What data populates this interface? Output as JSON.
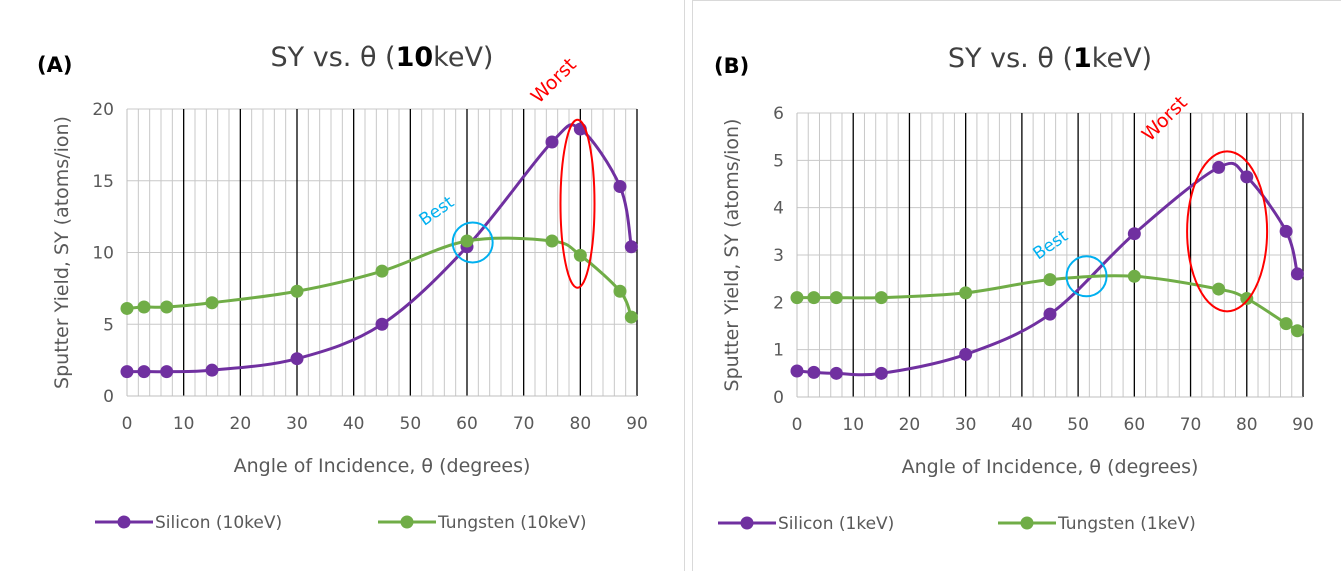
{
  "chart_data": [
    {
      "type": "line",
      "panel_label": "(A)",
      "title_parts": [
        "SY vs. θ (",
        "10",
        "keV)"
      ],
      "xlabel": "Angle of Incidence, θ (degrees)",
      "ylabel": "Sputter Yield, SY (atoms/ion)",
      "xlim": [
        0,
        90
      ],
      "ylim": [
        0,
        20
      ],
      "xticks": [
        "0",
        "10",
        "20",
        "30",
        "40",
        "50",
        "60",
        "70",
        "80",
        "90"
      ],
      "yticks": [
        "0",
        "5",
        "10",
        "15",
        "20"
      ],
      "grid": "major vertical black lines every 10, minor every 2",
      "legend": "bottom",
      "series": [
        {
          "name": "Silicon (10keV)",
          "color": "#7030a0",
          "x": [
            0,
            3,
            7,
            15,
            30,
            45,
            60,
            75,
            80,
            87,
            89
          ],
          "y": [
            1.7,
            1.7,
            1.7,
            1.8,
            2.6,
            5.0,
            10.4,
            17.7,
            18.6,
            14.6,
            10.4
          ]
        },
        {
          "name": "Tungsten (10keV)",
          "color": "#70ad47",
          "x": [
            0,
            3,
            7,
            15,
            30,
            45,
            60,
            75,
            80,
            87,
            89
          ],
          "y": [
            6.1,
            6.2,
            6.2,
            6.5,
            7.3,
            8.7,
            10.8,
            10.8,
            9.8,
            7.3,
            5.5
          ]
        }
      ],
      "annotations": [
        {
          "text": "Best",
          "color": "#00b0f0",
          "x": 61,
          "y": 10.7,
          "shape": "circle"
        },
        {
          "text": "Worst",
          "color": "#ff0000",
          "x": 79.5,
          "y": 13.4,
          "shape": "ellipse"
        }
      ]
    },
    {
      "type": "line",
      "panel_label": "(B)",
      "title_parts": [
        "SY vs. θ (",
        "1",
        "keV)"
      ],
      "xlabel": "Angle of Incidence, θ (degrees)",
      "ylabel": "Sputter Yield, SY (atoms/ion)",
      "xlim": [
        0,
        90
      ],
      "ylim": [
        0,
        6
      ],
      "xticks": [
        "0",
        "10",
        "20",
        "30",
        "40",
        "50",
        "60",
        "70",
        "80",
        "90"
      ],
      "yticks": [
        "0",
        "1",
        "2",
        "3",
        "4",
        "5",
        "6"
      ],
      "grid": "major vertical black lines every 10, minor every 2",
      "legend": "bottom",
      "series": [
        {
          "name": "Silicon (1keV)",
          "color": "#7030a0",
          "x": [
            0,
            3,
            7,
            15,
            30,
            45,
            60,
            75,
            80,
            87,
            89
          ],
          "y": [
            0.55,
            0.52,
            0.5,
            0.5,
            0.9,
            1.75,
            3.45,
            4.85,
            4.65,
            3.5,
            2.6
          ]
        },
        {
          "name": "Tungsten (1keV)",
          "color": "#70ad47",
          "x": [
            0,
            3,
            7,
            15,
            30,
            45,
            60,
            75,
            80,
            87,
            89
          ],
          "y": [
            2.1,
            2.1,
            2.1,
            2.1,
            2.2,
            2.48,
            2.55,
            2.28,
            2.08,
            1.55,
            1.4
          ]
        }
      ],
      "annotations": [
        {
          "text": "Best",
          "color": "#00b0f0",
          "x": 51.5,
          "y": 2.55,
          "shape": "circle"
        },
        {
          "text": "Worst",
          "color": "#ff0000",
          "x": 76.5,
          "y": 3.5,
          "shape": "ellipse"
        }
      ]
    }
  ]
}
